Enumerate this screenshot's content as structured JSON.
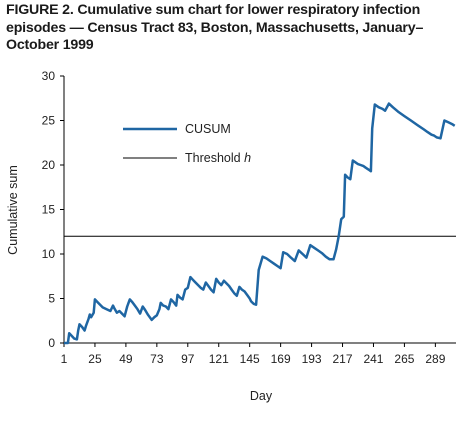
{
  "chart_data": {
    "type": "line",
    "title": "FIGURE 2. Cumulative sum chart for lower respiratory infection episodes — Census Tract 83, Boston, Massachusetts, January–October 1999",
    "xlabel": "Day",
    "ylabel": "Cumulative sum",
    "xlim": [
      1,
      305
    ],
    "ylim": [
      0,
      30
    ],
    "x_ticks": [
      1,
      25,
      49,
      73,
      97,
      121,
      145,
      169,
      193,
      217,
      241,
      265,
      289
    ],
    "y_ticks": [
      0,
      5,
      10,
      15,
      20,
      25,
      30
    ],
    "grid": false,
    "legend_position": "upper-left inside plot",
    "series": [
      {
        "name": "CUSUM",
        "color": "#1f66a3",
        "x": [
          1,
          4,
          5,
          7,
          9,
          11,
          12,
          13,
          15,
          17,
          18,
          20,
          21,
          22,
          24,
          25,
          27,
          29,
          31,
          34,
          37,
          39,
          40,
          42,
          44,
          46,
          48,
          50,
          52,
          54,
          56,
          58,
          60,
          62,
          64,
          66,
          67,
          69,
          71,
          73,
          75,
          76,
          78,
          80,
          82,
          84,
          86,
          88,
          89,
          91,
          93,
          95,
          97,
          99,
          101,
          103,
          105,
          107,
          109,
          111,
          113,
          115,
          117,
          119,
          121,
          123,
          125,
          127,
          129,
          131,
          133,
          135,
          137,
          139,
          141,
          143,
          145,
          146,
          148,
          150,
          152,
          155,
          158,
          161,
          164,
          167,
          169,
          171,
          174,
          177,
          180,
          183,
          186,
          189,
          192,
          195,
          198,
          201,
          204,
          207,
          210,
          212,
          214,
          216,
          218,
          219,
          221,
          223,
          225,
          227,
          229,
          231,
          233,
          235,
          237,
          239,
          240,
          242,
          245,
          248,
          250,
          253,
          256,
          260,
          265,
          270,
          275,
          280,
          283,
          286,
          288,
          290,
          293,
          296,
          299,
          302,
          304
        ],
        "values": [
          0,
          0,
          1.1,
          0.8,
          0.5,
          0.4,
          1.4,
          2.1,
          1.8,
          1.4,
          1.9,
          2.7,
          3.2,
          2.9,
          3.4,
          4.9,
          4.6,
          4.3,
          4.0,
          3.8,
          3.6,
          4.2,
          3.9,
          3.4,
          3.6,
          3.3,
          3.0,
          4.1,
          4.9,
          4.6,
          4.2,
          3.8,
          3.3,
          4.1,
          3.7,
          3.2,
          3.0,
          2.6,
          2.9,
          3.1,
          3.8,
          4.5,
          4.2,
          4.1,
          3.8,
          4.9,
          4.6,
          4.2,
          5.4,
          5.1,
          4.9,
          6.0,
          6.2,
          7.4,
          7.1,
          6.8,
          6.5,
          6.2,
          6.0,
          6.8,
          6.4,
          6.0,
          5.7,
          7.2,
          6.8,
          6.5,
          7.0,
          6.7,
          6.4,
          6.0,
          5.6,
          5.3,
          6.3,
          6.0,
          5.8,
          5.4,
          5.0,
          4.7,
          4.4,
          4.3,
          8.2,
          9.7,
          9.5,
          9.2,
          8.9,
          8.6,
          8.4,
          10.2,
          10.0,
          9.6,
          9.2,
          10.4,
          10.0,
          9.6,
          11.0,
          10.7,
          10.4,
          10.1,
          9.7,
          9.4,
          9.4,
          10.5,
          12.0,
          13.9,
          14.2,
          18.9,
          18.6,
          18.4,
          20.5,
          20.3,
          20.1,
          20.0,
          19.9,
          19.7,
          19.5,
          19.3,
          24.1,
          26.8,
          26.5,
          26.3,
          26.1,
          26.9,
          26.5,
          26.0,
          25.5,
          25.0,
          24.5,
          24.0,
          23.7,
          23.4,
          23.3,
          23.1,
          23.0,
          25.0,
          24.8,
          24.6,
          24.4
        ],
        "stroke_width": 2.5
      },
      {
        "name": "Threshold h",
        "color": "#000000",
        "x": [
          1,
          305
        ],
        "values": [
          12,
          12
        ],
        "stroke_width": 1
      }
    ],
    "legend": [
      {
        "label": "CUSUM",
        "italic_suffix": ""
      },
      {
        "label": "Threshold ",
        "italic_suffix": "h"
      }
    ]
  }
}
